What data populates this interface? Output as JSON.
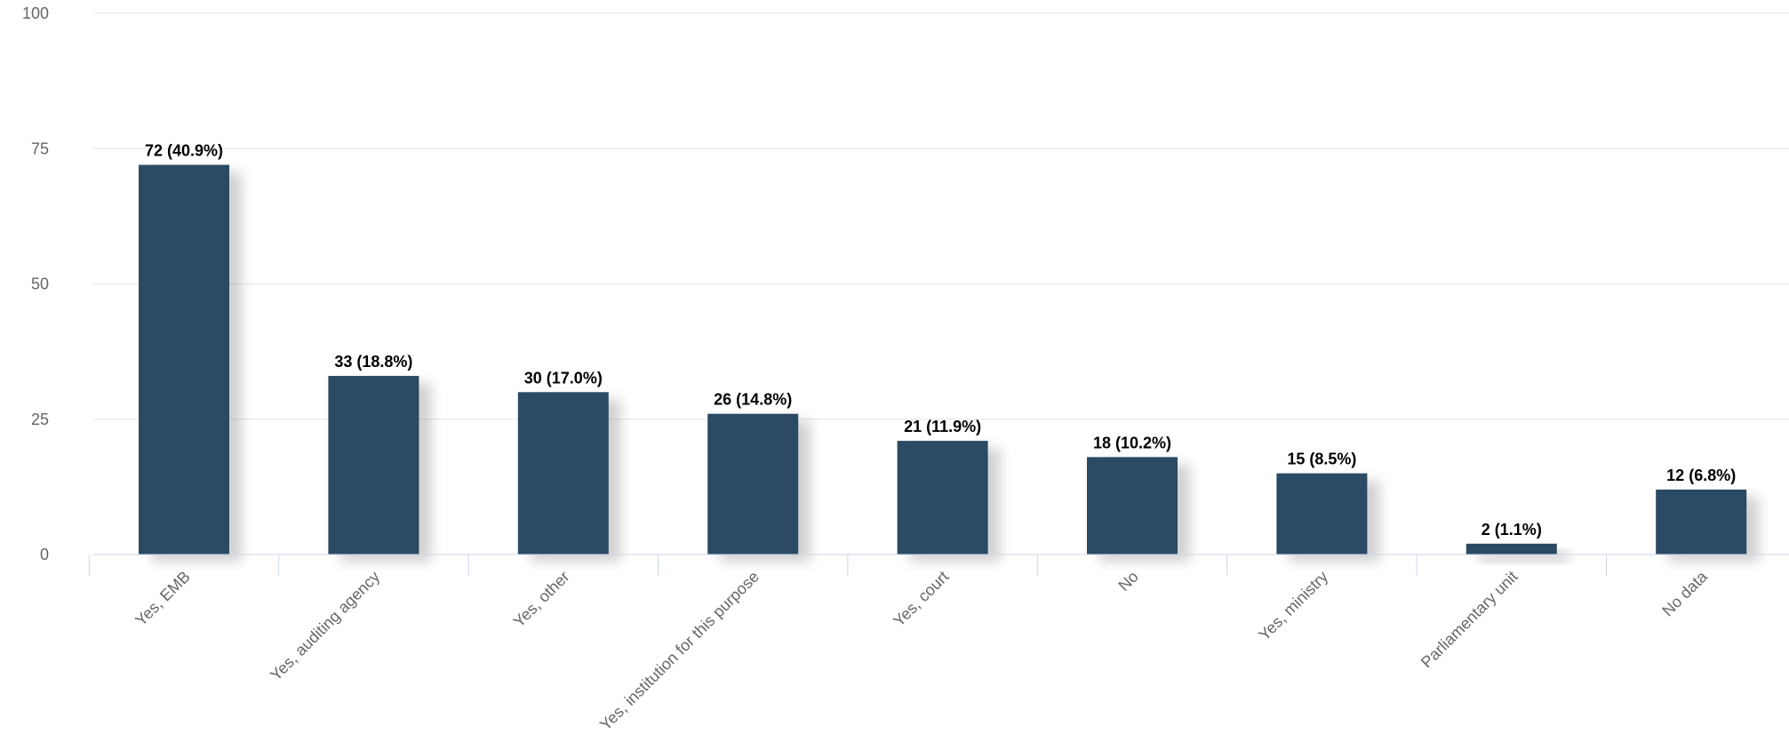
{
  "chart_data": {
    "type": "bar",
    "categories": [
      "Yes, EMB",
      "Yes, auditing agency",
      "Yes, other",
      "Yes, institution for this purpose",
      "Yes, court",
      "No",
      "Yes, ministry",
      "Parliamentary unit",
      "No data"
    ],
    "values": [
      72,
      33,
      30,
      26,
      21,
      18,
      15,
      2,
      12
    ],
    "data_labels": [
      "72 (40.9%)",
      "33 (18.8%)",
      "30 (17.0%)",
      "26 (14.8%)",
      "21 (11.9%)",
      "18 (10.2%)",
      "15 (8.5%)",
      "2 (1.1%)",
      "12 (6.8%)"
    ],
    "y_ticks": [
      "0",
      "25",
      "50",
      "75",
      "100"
    ],
    "ylim": [
      0,
      100
    ],
    "grid": true,
    "bar_color": "#2b4a63"
  }
}
